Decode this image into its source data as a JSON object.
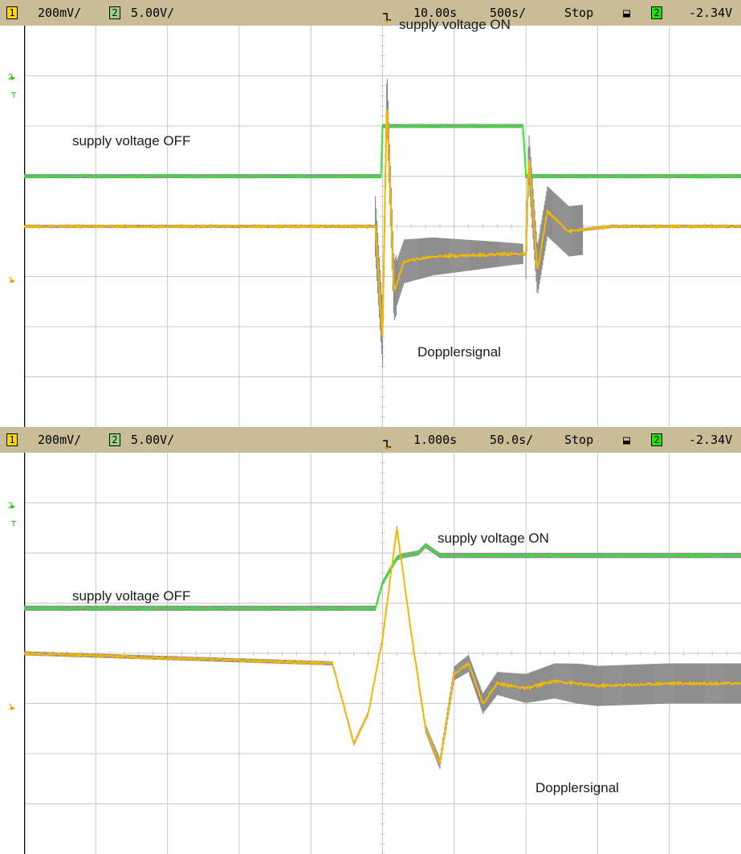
{
  "colors": {
    "status_bar": "#c8bd97",
    "ch1_trace": "#f5b800",
    "ch2_trace": "#34e634",
    "envelope": "#8e8e8e",
    "grid": "#c8c8c8",
    "trigger_marker": "#f07800"
  },
  "top": {
    "status": {
      "ch1_num": "1",
      "ch1_scale": "200mV/",
      "ch2_num": "2",
      "ch2_scale": "5.00V/",
      "time_delay": "10.00s",
      "time_scale": "500s/",
      "run_state": "Stop",
      "trigger_slope_icon": "falling-edge-icon",
      "trig_ch": "2",
      "trig_level": "-2.34V"
    },
    "annotations": {
      "supply_on": "supply voltage ON",
      "supply_off": "supply voltage OFF",
      "doppler": "Dopplersignal"
    },
    "markers": {
      "ch2": "2",
      "trig": "T",
      "ch1": "1"
    }
  },
  "bottom": {
    "status": {
      "ch1_num": "1",
      "ch1_scale": "200mV/",
      "ch2_num": "2",
      "ch2_scale": "5.00V/",
      "time_delay": "1.000s",
      "time_scale": "50.0s/",
      "run_state": "Stop",
      "trigger_slope_icon": "falling-edge-icon",
      "trig_ch": "2",
      "trig_level": "-2.34V"
    },
    "annotations": {
      "supply_on": "supply voltage ON",
      "supply_off": "supply voltage OFF",
      "doppler": "Dopplersignal"
    },
    "markers": {
      "ch2": "2",
      "trig": "T",
      "ch1": "1"
    }
  },
  "chart_data": [
    {
      "type": "line",
      "title": "",
      "xlabel": "",
      "ylabel": "",
      "grid": true,
      "xlim": [
        -2.5,
        2.5
      ],
      "ylim": [
        -4,
        4
      ],
      "series": [
        {
          "name": "supply voltage",
          "channel": "2",
          "x": [
            -2.5,
            -0.01,
            0.0,
            0.02,
            0.98,
            1.0,
            1.02,
            2.5
          ],
          "y": [
            1.0,
            1.0,
            2.0,
            2.0,
            2.0,
            1.0,
            1.0,
            1.0
          ]
        },
        {
          "name": "Dopplersignal",
          "channel": "1",
          "x": [
            -2.5,
            -0.05,
            0.0,
            0.03,
            0.08,
            0.15,
            0.35,
            0.9,
            1.0,
            1.02,
            1.08,
            1.15,
            1.3,
            1.6,
            2.5
          ],
          "y": [
            0.0,
            0.0,
            -2.2,
            2.6,
            -1.3,
            -0.7,
            -0.6,
            -0.55,
            -0.55,
            1.4,
            -0.9,
            0.3,
            -0.1,
            0.0,
            0.0
          ]
        }
      ]
    },
    {
      "type": "line",
      "title": "",
      "xlabel": "",
      "ylabel": "",
      "grid": true,
      "xlim": [
        -0.25,
        0.25
      ],
      "ylim": [
        -4,
        4
      ],
      "series": [
        {
          "name": "supply voltage",
          "channel": "2",
          "x": [
            -0.25,
            -0.005,
            0.0,
            0.01,
            0.015,
            0.025,
            0.03,
            0.04,
            0.05,
            0.25
          ],
          "y": [
            0.9,
            0.9,
            1.4,
            1.9,
            1.95,
            2.0,
            2.15,
            1.95,
            1.95,
            1.95
          ]
        },
        {
          "name": "Dopplersignal",
          "channel": "1",
          "x": [
            -0.25,
            -0.035,
            -0.02,
            -0.01,
            0.0,
            0.01,
            0.02,
            0.03,
            0.04,
            0.05,
            0.06,
            0.07,
            0.08,
            0.1,
            0.12,
            0.15,
            0.2,
            0.25
          ],
          "y": [
            0.0,
            -0.2,
            -1.8,
            -1.2,
            0.3,
            2.5,
            0.4,
            -1.5,
            -2.2,
            -0.4,
            -0.2,
            -1.0,
            -0.6,
            -0.7,
            -0.55,
            -0.65,
            -0.6,
            -0.6
          ]
        }
      ]
    }
  ]
}
